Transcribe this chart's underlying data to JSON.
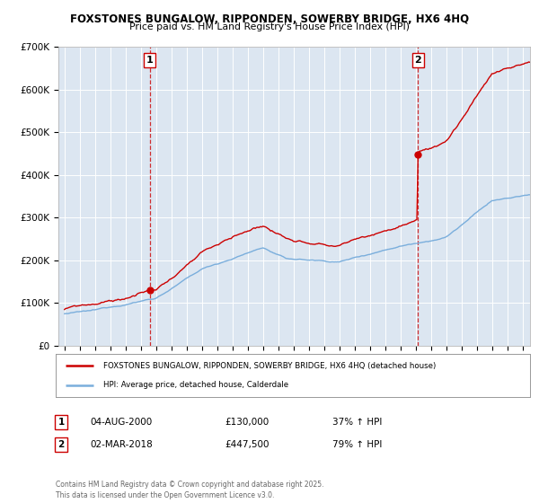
{
  "title_line1": "FOXSTONES BUNGALOW, RIPPONDEN, SOWERBY BRIDGE, HX6 4HQ",
  "title_line2": "Price paid vs. HM Land Registry's House Price Index (HPI)",
  "ylim": [
    0,
    700000
  ],
  "yticks": [
    0,
    100000,
    200000,
    300000,
    400000,
    500000,
    600000,
    700000
  ],
  "ytick_labels": [
    "£0",
    "£100K",
    "£200K",
    "£300K",
    "£400K",
    "£500K",
    "£600K",
    "£700K"
  ],
  "background_color": "#dce6f1",
  "hpi_line_color": "#7aaedc",
  "property_line_color": "#cc0000",
  "legend_property": "FOXSTONES BUNGALOW, RIPPONDEN, SOWERBY BRIDGE, HX6 4HQ (detached house)",
  "legend_hpi": "HPI: Average price, detached house, Calderdale",
  "copyright": "Contains HM Land Registry data © Crown copyright and database right 2025.\nThis data is licensed under the Open Government Licence v3.0.",
  "xlim_start": 1994.6,
  "xlim_end": 2025.5,
  "sale1_year": 2000.58,
  "sale1_price": 130000,
  "sale2_year": 2018.17,
  "sale2_price": 447500
}
